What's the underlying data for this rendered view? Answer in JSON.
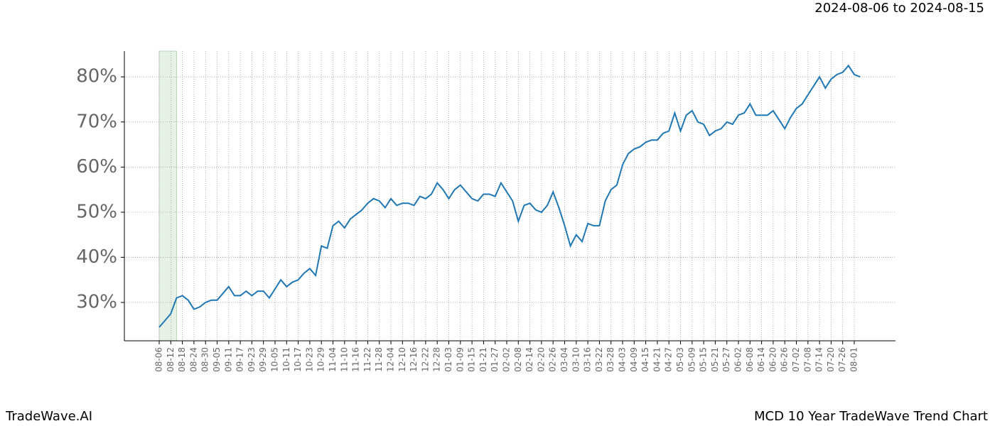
{
  "chart_data": {
    "type": "line",
    "title": "MCD 10 Year TradeWave Trend Chart",
    "subtitle": "2024-08-06 to 2024-08-15",
    "brand": "TradeWave.AI",
    "categories": [
      "08-06",
      null,
      "08-12",
      null,
      "08-18",
      null,
      "08-24",
      null,
      "08-30",
      null,
      "09-05",
      null,
      "09-11",
      null,
      "09-17",
      null,
      "09-23",
      null,
      "09-29",
      null,
      "10-05",
      null,
      "10-11",
      null,
      "10-17",
      null,
      "10-23",
      null,
      "10-29",
      null,
      "11-04",
      null,
      "11-10",
      null,
      "11-16",
      null,
      "11-22",
      null,
      "11-28",
      null,
      "12-04",
      null,
      "12-10",
      null,
      "12-16",
      null,
      "12-22",
      null,
      "12-28",
      null,
      "01-03",
      null,
      "01-09",
      null,
      "01-15",
      null,
      "01-21",
      null,
      "01-27",
      null,
      "02-02",
      null,
      "02-08",
      null,
      "02-14",
      null,
      "02-20",
      null,
      "02-26",
      null,
      "03-04",
      null,
      "03-10",
      null,
      "03-16",
      null,
      "03-22",
      null,
      "03-28",
      null,
      "04-03",
      null,
      "04-09",
      null,
      "04-15",
      null,
      "04-21",
      null,
      "04-27",
      null,
      "05-03",
      null,
      "05-09",
      null,
      "05-15",
      null,
      "05-21",
      null,
      "05-27",
      null,
      "06-02",
      null,
      "06-08",
      null,
      "06-14",
      null,
      "06-20",
      null,
      "06-26",
      null,
      "07-02",
      null,
      "07-08",
      null,
      "07-14",
      null,
      "07-20",
      null,
      "07-26",
      null,
      "08-01",
      null
    ],
    "series": [
      {
        "color": "#1f77b4",
        "values": [
          24.5,
          26,
          27.5,
          31,
          31.5,
          30.5,
          28.5,
          29,
          30,
          30.5,
          30.5,
          32,
          33.5,
          31.5,
          31.5,
          32.5,
          31.5,
          32.5,
          32.5,
          31,
          33,
          35,
          33.5,
          34.5,
          35,
          36.5,
          37.5,
          36,
          42.5,
          42,
          47,
          48,
          46.5,
          48.5,
          49.5,
          50.5,
          52,
          53,
          52.5,
          51,
          53,
          51.5,
          52,
          52,
          51.5,
          53.5,
          53,
          54,
          56.5,
          55,
          53,
          55,
          56,
          54.5,
          53,
          52.5,
          54,
          54,
          53.5,
          56.5,
          54.5,
          52.5,
          48,
          51.5,
          52,
          50.5,
          50,
          51.5,
          54.5,
          51,
          47,
          42.5,
          45,
          43.5,
          47.5,
          47,
          47,
          52.5,
          55,
          56,
          60.5,
          63,
          64,
          64.5,
          65.5,
          66,
          66,
          67.5,
          68,
          72,
          68,
          71.5,
          72.5,
          70,
          69.5,
          67,
          68,
          68.5,
          70,
          69.5,
          71.5,
          72,
          74,
          71.5,
          71.5,
          71.5,
          72.5,
          70.5,
          68.5,
          71,
          73,
          74,
          76,
          78,
          80,
          77.5,
          79.5,
          80.5,
          81,
          82.5,
          80.5,
          80
        ]
      }
    ],
    "highlight": [
      0,
      3
    ],
    "highlight_color": "#e6f2e6",
    "ylim": [
      21.5,
      85.7
    ],
    "yticks": [
      {
        "value": 30,
        "label": "30%"
      },
      {
        "value": 40,
        "label": "40%"
      },
      {
        "value": 50,
        "label": "50%"
      },
      {
        "value": 60,
        "label": "60%"
      },
      {
        "value": 70,
        "label": "70%"
      },
      {
        "value": 80,
        "label": "80%"
      }
    ],
    "grid": true
  }
}
